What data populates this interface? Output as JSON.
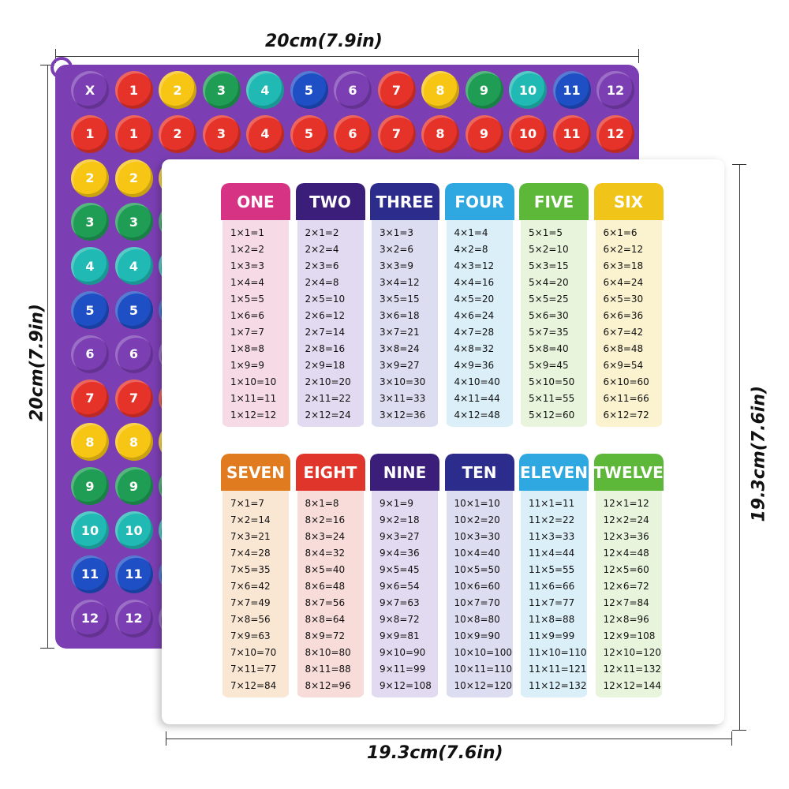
{
  "dimensions": {
    "top": "20cm(7.9in)",
    "left": "20cm(7.9in)",
    "right": "19.3cm(7.6in)",
    "bottom": "19.3cm(7.6in)"
  },
  "popit": {
    "color": "#7b3fb3",
    "header_row": [
      "X",
      "1",
      "2",
      "3",
      "4",
      "5",
      "6",
      "7",
      "8",
      "9",
      "10",
      "11",
      "12"
    ],
    "row_labels": [
      "1",
      "2",
      "3",
      "4",
      "5",
      "6",
      "7",
      "8",
      "9",
      "10",
      "11",
      "12"
    ],
    "column_colors": [
      "#7b3fb3",
      "#e6332a",
      "#f7c514",
      "#1f9d55",
      "#20b9b3",
      "#1f4fc4",
      "#7b3fb3",
      "#e6332a",
      "#f7c514",
      "#1f9d55",
      "#20b9b3",
      "#1f4fc4",
      "#7b3fb3"
    ]
  },
  "tables": [
    {
      "title": "ONE",
      "color": "#d63384",
      "body": "#f6dbe7",
      "facts": [
        "1×1=1",
        "1×2=2",
        "1×3=3",
        "1×4=4",
        "1×5=5",
        "1×6=6",
        "1×7=7",
        "1×8=8",
        "1×9=9",
        "1×10=10",
        "1×11=11",
        "1×12=12"
      ]
    },
    {
      "title": "TWO",
      "color": "#3b1e7a",
      "body": "#e2daf0",
      "facts": [
        "2×1=2",
        "2×2=4",
        "2×3=6",
        "2×4=8",
        "2×5=10",
        "2×6=12",
        "2×7=14",
        "2×8=16",
        "2×9=18",
        "2×10=20",
        "2×11=22",
        "2×12=24"
      ]
    },
    {
      "title": "THREE",
      "color": "#2b2c8c",
      "body": "#dcddf0",
      "facts": [
        "3×1=3",
        "3×2=6",
        "3×3=9",
        "3×4=12",
        "3×5=15",
        "3×6=18",
        "3×7=21",
        "3×8=24",
        "3×9=27",
        "3×10=30",
        "3×11=33",
        "3×12=36"
      ]
    },
    {
      "title": "FOUR",
      "color": "#2fa7e0",
      "body": "#dbeff9",
      "facts": [
        "4×1=4",
        "4×2=8",
        "4×3=12",
        "4×4=16",
        "4×5=20",
        "4×6=24",
        "4×7=28",
        "4×8=32",
        "4×9=36",
        "4×10=40",
        "4×11=44",
        "4×12=48"
      ]
    },
    {
      "title": "FIVE",
      "color": "#5db83a",
      "body": "#e8f4dc",
      "facts": [
        "5×1=5",
        "5×2=10",
        "5×3=15",
        "5×4=20",
        "5×5=25",
        "5×6=30",
        "5×7=35",
        "5×8=40",
        "5×9=45",
        "5×10=50",
        "5×11=55",
        "5×12=60"
      ]
    },
    {
      "title": "SIX",
      "color": "#f0c419",
      "body": "#fbf2cf",
      "facts": [
        "6×1=6",
        "6×2=12",
        "6×3=18",
        "6×4=24",
        "6×5=30",
        "6×6=36",
        "6×7=42",
        "6×8=48",
        "6×9=54",
        "6×10=60",
        "6×11=66",
        "6×12=72"
      ]
    },
    {
      "title": "SEVEN",
      "color": "#e07b1f",
      "body": "#f9e6d3",
      "facts": [
        "7×1=7",
        "7×2=14",
        "7×3=21",
        "7×4=28",
        "7×5=35",
        "7×6=42",
        "7×7=49",
        "7×8=56",
        "7×9=63",
        "7×10=70",
        "7×11=77",
        "7×12=84"
      ]
    },
    {
      "title": "EIGHT",
      "color": "#e0352b",
      "body": "#f8dcd9",
      "facts": [
        "8×1=8",
        "8×2=16",
        "8×3=24",
        "8×4=32",
        "8×5=40",
        "8×6=48",
        "8×7=56",
        "8×8=64",
        "8×9=72",
        "8×10=80",
        "8×11=88",
        "8×12=96"
      ]
    },
    {
      "title": "NINE",
      "color": "#3b1e7a",
      "body": "#e2daf0",
      "facts": [
        "9×1=9",
        "9×2=18",
        "9×3=27",
        "9×4=36",
        "9×5=45",
        "9×6=54",
        "9×7=63",
        "9×8=72",
        "9×9=81",
        "9×10=90",
        "9×11=99",
        "9×12=108"
      ]
    },
    {
      "title": "TEN",
      "color": "#2b2c8c",
      "body": "#dcddf0",
      "facts": [
        "10×1=10",
        "10×2=20",
        "10×3=30",
        "10×4=40",
        "10×5=50",
        "10×6=60",
        "10×7=70",
        "10×8=80",
        "10×9=90",
        "10×10=100",
        "10×11=110",
        "10×12=120"
      ]
    },
    {
      "title": "ELEVEN",
      "color": "#2fa7e0",
      "body": "#dbeff9",
      "facts": [
        "11×1=11",
        "11×2=22",
        "11×3=33",
        "11×4=44",
        "11×5=55",
        "11×6=66",
        "11×7=77",
        "11×8=88",
        "11×9=99",
        "11×10=110",
        "11×11=121",
        "11×12=132"
      ]
    },
    {
      "title": "TWELVE",
      "color": "#5db83a",
      "body": "#e8f4dc",
      "facts": [
        "12×1=12",
        "12×2=24",
        "12×3=36",
        "12×4=48",
        "12×5=60",
        "12×6=72",
        "12×7=84",
        "12×8=96",
        "12×9=108",
        "12×10=120",
        "12×11=132",
        "12×12=144"
      ]
    }
  ]
}
